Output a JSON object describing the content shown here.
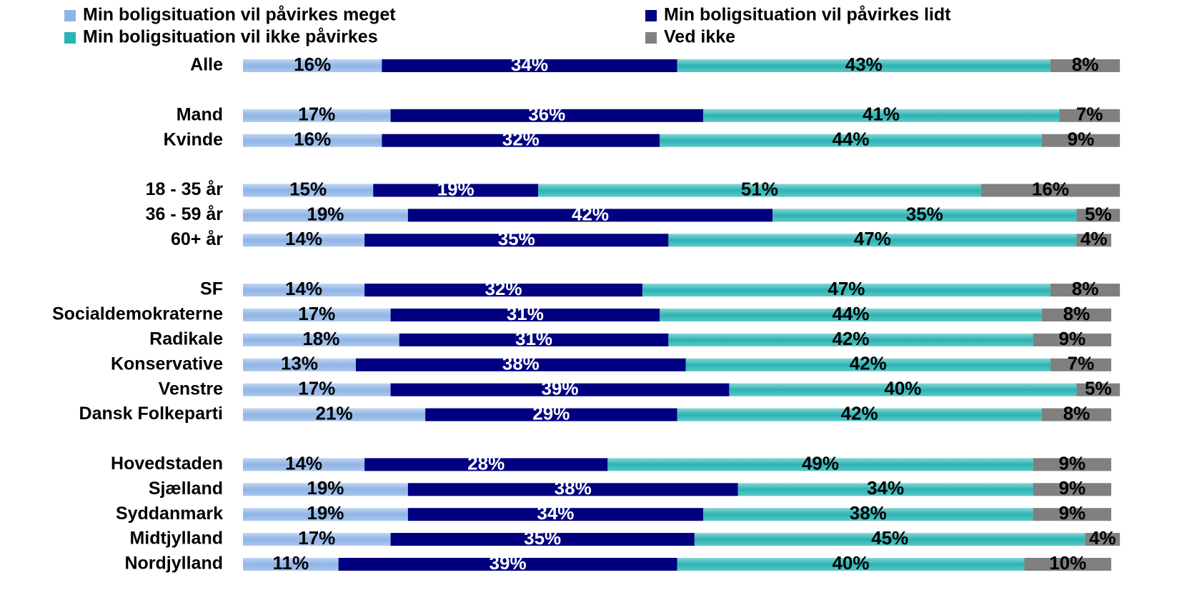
{
  "chart_data": {
    "type": "stacked-barh",
    "categories": [
      "Alle",
      null,
      "Mand",
      "Kvinde",
      null,
      "18 - 35 år",
      "36 - 59 år",
      "60+ år",
      null,
      "SF",
      "Socialdemokraterne",
      "Radikale",
      "Konservative",
      "Venstre",
      "Dansk Folkeparti",
      null,
      "Hovedstaden",
      "Sjælland",
      "Syddanmark",
      "Midtjylland",
      "Nordjylland"
    ],
    "xlim": [
      0,
      100
    ],
    "series": [
      {
        "name": "Min boligsituation vil påvirkes meget",
        "color": "#8fb4e6",
        "values": [
          16,
          null,
          17,
          16,
          null,
          15,
          19,
          14,
          null,
          14,
          17,
          18,
          13,
          17,
          21,
          null,
          14,
          19,
          19,
          17,
          11
        ],
        "value_labels": [
          "16%",
          null,
          "17%",
          "16%",
          null,
          "15%",
          "19%",
          "14%",
          null,
          "14%",
          "17%",
          "18%",
          "13%",
          "17%",
          "21%",
          null,
          "14%",
          "19%",
          "19%",
          "17%",
          "11%"
        ]
      },
      {
        "name": "Min boligsituation vil påvirkes lidt",
        "color": "#000080",
        "values": [
          34,
          null,
          36,
          32,
          null,
          19,
          42,
          35,
          null,
          32,
          31,
          31,
          38,
          39,
          29,
          null,
          28,
          38,
          34,
          35,
          39
        ],
        "value_labels": [
          "34%",
          null,
          "36%",
          "32%",
          null,
          "19%",
          "42%",
          "35%",
          null,
          "32%",
          "31%",
          "31%",
          "38%",
          "39%",
          "29%",
          null,
          "28%",
          "38%",
          "34%",
          "35%",
          "39%"
        ]
      },
      {
        "name": "Min boligsituation vil ikke påvirkes",
        "color": "#2ab3b3",
        "values": [
          43,
          null,
          41,
          44,
          null,
          51,
          35,
          47,
          null,
          47,
          44,
          42,
          42,
          40,
          42,
          null,
          49,
          34,
          38,
          45,
          40
        ],
        "value_labels": [
          "43%",
          null,
          "41%",
          "44%",
          null,
          "51%",
          "35%",
          "47%",
          null,
          "47%",
          "44%",
          "42%",
          "42%",
          "40%",
          "42%",
          null,
          "49%",
          "34%",
          "38%",
          "45%",
          "40%"
        ]
      },
      {
        "name": "Ved ikke",
        "color": "#808080",
        "values": [
          8,
          null,
          7,
          9,
          null,
          16,
          5,
          4,
          null,
          8,
          8,
          9,
          7,
          5,
          8,
          null,
          9,
          9,
          9,
          4,
          10
        ],
        "value_labels": [
          "8%",
          null,
          "7%",
          "9%",
          null,
          "16%",
          "5%",
          "4%",
          null,
          "8%",
          "8%",
          "9%",
          "7%",
          "5%",
          "8%",
          null,
          "9%",
          "9%",
          "9%",
          "4%",
          "10%"
        ]
      }
    ]
  }
}
